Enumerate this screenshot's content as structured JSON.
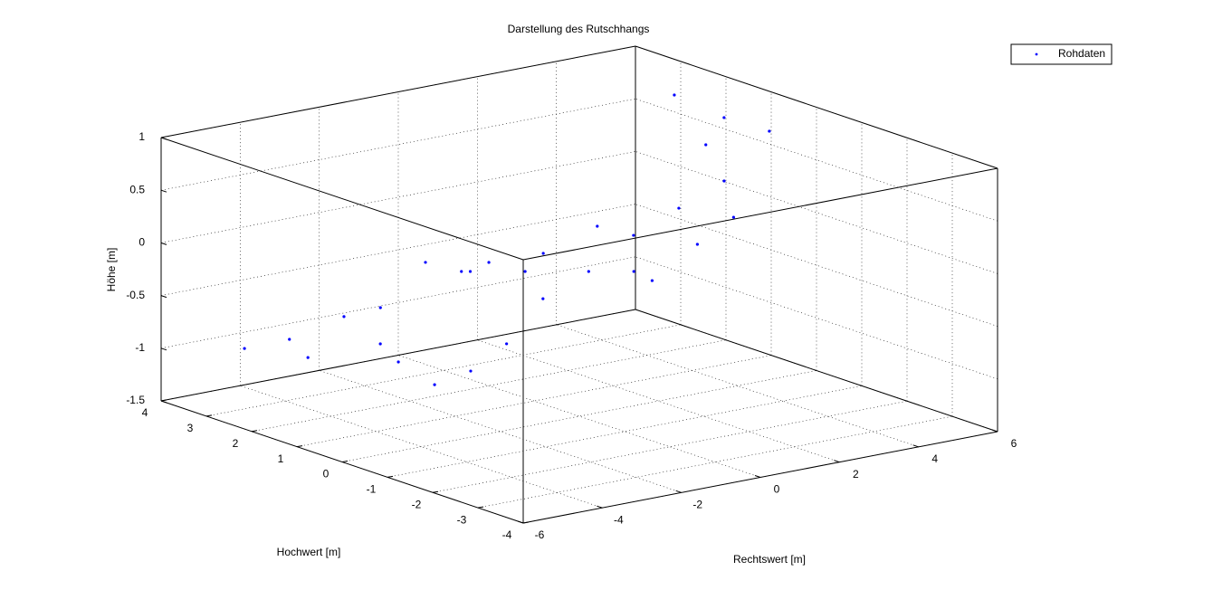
{
  "chart_data": {
    "type": "scatter3d",
    "title": "Darstellung des Rutschhangs",
    "xlabel": "Rechtswert [m]",
    "ylabel": "Hochwert [m]",
    "zlabel": "Höhe [m]",
    "xlim": [
      -6,
      6
    ],
    "xticks": [
      -6,
      -4,
      -2,
      0,
      2,
      4,
      6
    ],
    "ylim": [
      -4,
      4
    ],
    "yticks": [
      -4,
      -3,
      -2,
      -1,
      0,
      1,
      2,
      3,
      4
    ],
    "zlim": [
      -1.5,
      1
    ],
    "zticks": [
      -1.5,
      -1,
      -0.5,
      0,
      0.5,
      1
    ],
    "grid": true,
    "legend": "northeast",
    "series": [
      {
        "name": "Rohdaten",
        "color": "#0000ff",
        "x": [
          -4.67,
          -2.05,
          -3.51,
          -1.54,
          -0.16,
          0.63,
          -1.83,
          -1.83,
          -0.73,
          0.5,
          1.53,
          2.47,
          3.49,
          4.51,
          4.94,
          5.3,
          4.6,
          4.52,
          2.62,
          4.44,
          1.16,
          2.32,
          -1.1,
          1.01,
          0.99,
          0.86,
          -1.76,
          -3.58,
          3.57,
          2.26
        ],
        "y": [
          3.32,
          3.41,
          3.34,
          3.05,
          3.26,
          2.96,
          2.4,
          1.6,
          0.97,
          1.24,
          1.13,
          0.96,
          0.85,
          0.74,
          1.52,
          2.53,
          -0.18,
          0.75,
          0.68,
          0.47,
          1.81,
          1.63,
          1.44,
          2.08,
          3.47,
          2.75,
          2.86,
          2.87,
          0.51,
          0.77
        ],
        "z": [
          -1.0,
          -0.9,
          -1.0,
          -0.8,
          -0.5,
          -0.6,
          -1.2,
          -1.3,
          -0.9,
          -0.6,
          -0.4,
          -0.1,
          0.1,
          0.3,
          0.5,
          0.8,
          0.9,
          0.9,
          -0.5,
          0.0,
          -0.3,
          -0.1,
          -1.2,
          -0.5,
          -0.7,
          -0.5,
          -1.1,
          -1.1,
          -0.2,
          -0.4
        ]
      }
    ]
  }
}
